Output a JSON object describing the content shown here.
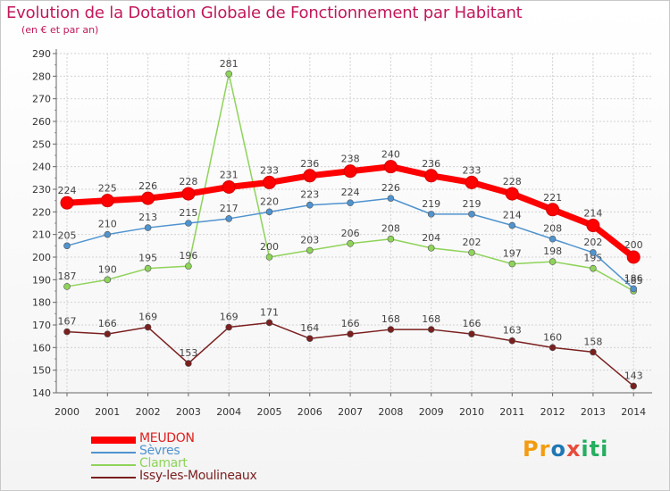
{
  "title": "Evolution de la Dotation Globale de Fonctionnement par Habitant",
  "subtitle": "(en € et par an)",
  "logo": {
    "text": "Proxiti",
    "letters": [
      "P",
      "r",
      "o",
      "x",
      "i",
      "t",
      "i"
    ],
    "colors": [
      "#f39c12",
      "#f39c12",
      "#1f77b4",
      "#e74c3c",
      "#27ae60",
      "#27ae60",
      "#27ae60"
    ]
  },
  "chart_data": {
    "type": "line",
    "x": [
      "2000",
      "2001",
      "2002",
      "2003",
      "2004",
      "2005",
      "2006",
      "2007",
      "2008",
      "2009",
      "2010",
      "2011",
      "2012",
      "2013",
      "2014"
    ],
    "ylim": [
      140,
      290
    ],
    "yticks": [
      140,
      150,
      160,
      170,
      180,
      190,
      200,
      210,
      220,
      230,
      240,
      250,
      260,
      270,
      280,
      290
    ],
    "grid": true,
    "legend": "bottom-left",
    "series": [
      {
        "name": "Issy-les-Moulineaux",
        "color": "#7b1f1f",
        "values": [
          167,
          166,
          169,
          153,
          169,
          171,
          164,
          166,
          168,
          168,
          166,
          163,
          160,
          158,
          143
        ]
      },
      {
        "name": "Clamart",
        "color": "#8fd35a",
        "values": [
          187,
          190,
          195,
          196,
          281,
          200,
          203,
          206,
          208,
          204,
          202,
          197,
          198,
          195,
          185
        ]
      },
      {
        "name": "Sèvres",
        "color": "#4f93cf",
        "values": [
          205,
          210,
          213,
          215,
          217,
          220,
          223,
          224,
          226,
          219,
          219,
          214,
          208,
          202,
          186
        ]
      },
      {
        "name": "MEUDON",
        "color": "#ff0000",
        "values": [
          224,
          225,
          226,
          228,
          231,
          233,
          236,
          238,
          240,
          236,
          233,
          228,
          221,
          214,
          200
        ]
      }
    ],
    "legend_order": [
      "MEUDON",
      "Sèvres",
      "Clamart",
      "Issy-les-Moulineaux"
    ]
  }
}
